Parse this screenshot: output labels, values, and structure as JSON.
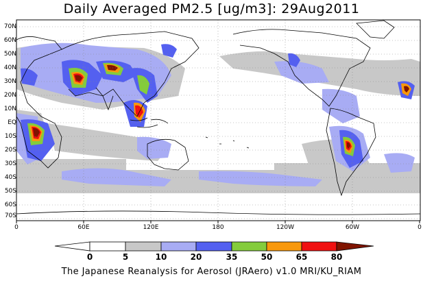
{
  "title": "Daily Averaged PM2.5 [ug/m3]: 29Aug2011",
  "footer": "The Japanese Reanalysis for Aerosol (JRAero) v1.0 MRI/KU_RIAM",
  "lat_labels": [
    "70N",
    "60N",
    "50N",
    "40N",
    "30N",
    "20N",
    "10N",
    "EQ",
    "10S",
    "20S",
    "30S",
    "40S",
    "50S",
    "60S",
    "70S"
  ],
  "lon_labels": [
    "0",
    "60E",
    "120E",
    "180",
    "120W",
    "60W",
    "0"
  ],
  "colorbar": {
    "levels": [
      "0",
      "5",
      "10",
      "20",
      "35",
      "50",
      "65",
      "80"
    ],
    "colors": [
      "#ffffff",
      "#c8c8c8",
      "#a8acf4",
      "#5460f0",
      "#84cc3c",
      "#f8980c",
      "#f01010",
      "#801400"
    ]
  }
}
